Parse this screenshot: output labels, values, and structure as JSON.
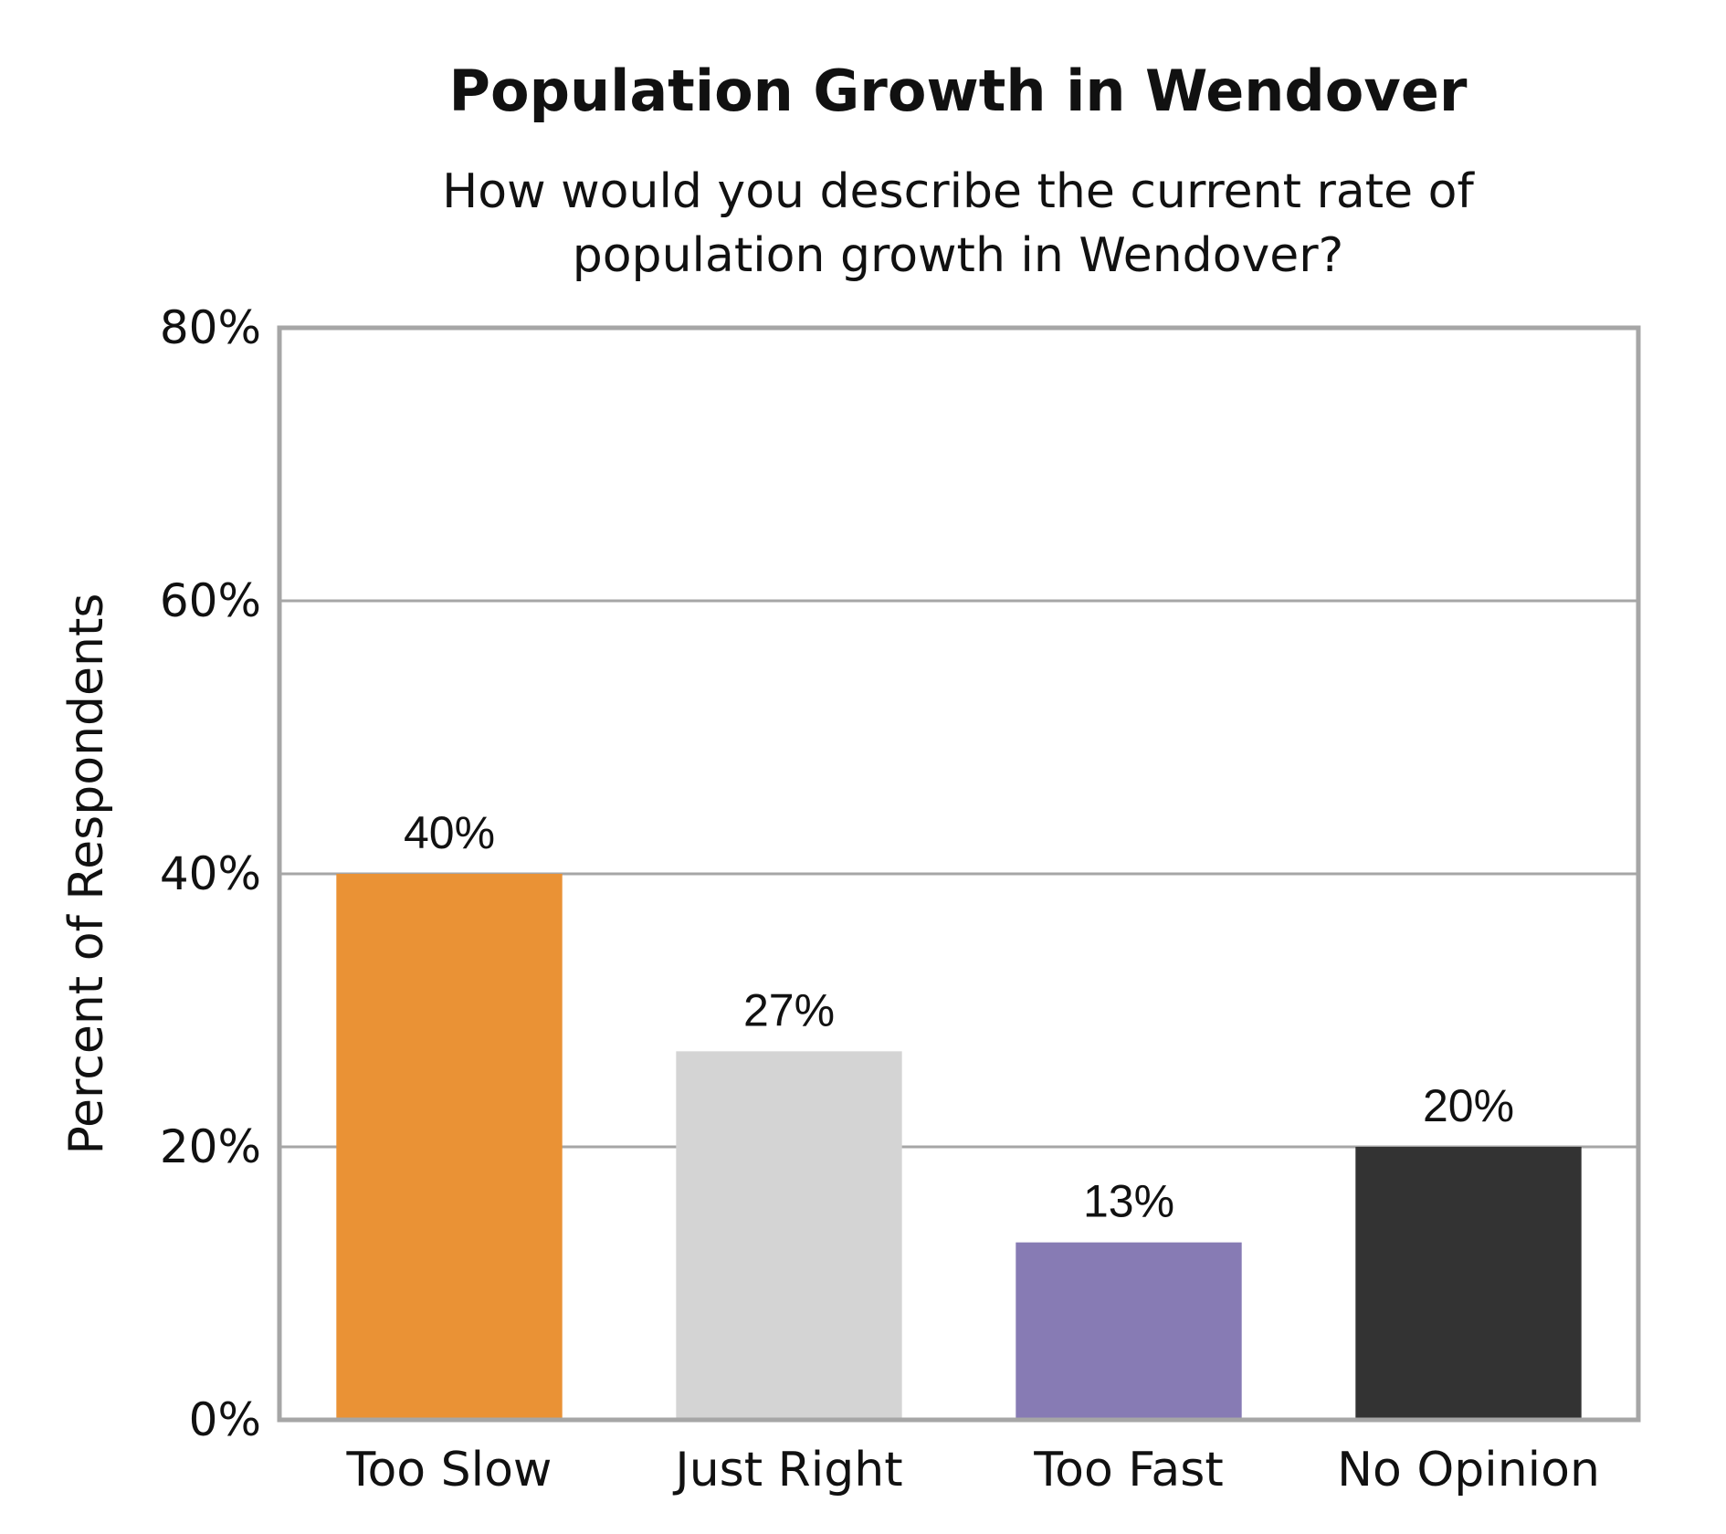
{
  "chart_data": {
    "type": "bar",
    "title": "Population Growth in Wendover",
    "subtitle": [
      "How would you describe the current rate of",
      "population growth in Wendover?"
    ],
    "xlabel": "",
    "ylabel": "Percent of Respondents",
    "ylim": [
      0,
      80
    ],
    "yticks": [
      0,
      20,
      40,
      60,
      80
    ],
    "ytick_labels": [
      "0%",
      "20%",
      "40%",
      "60%",
      "80%"
    ],
    "grid": true,
    "categories": [
      "Too Slow",
      "Just Right",
      "Too Fast",
      "No Opinion"
    ],
    "values": [
      40,
      27,
      13,
      20
    ],
    "value_labels": [
      "40%",
      "27%",
      "13%",
      "20%"
    ],
    "colors": [
      "#EA9235",
      "#D4D4D4",
      "#877BB4",
      "#333333"
    ],
    "frame_color": "#A6A6A6"
  }
}
